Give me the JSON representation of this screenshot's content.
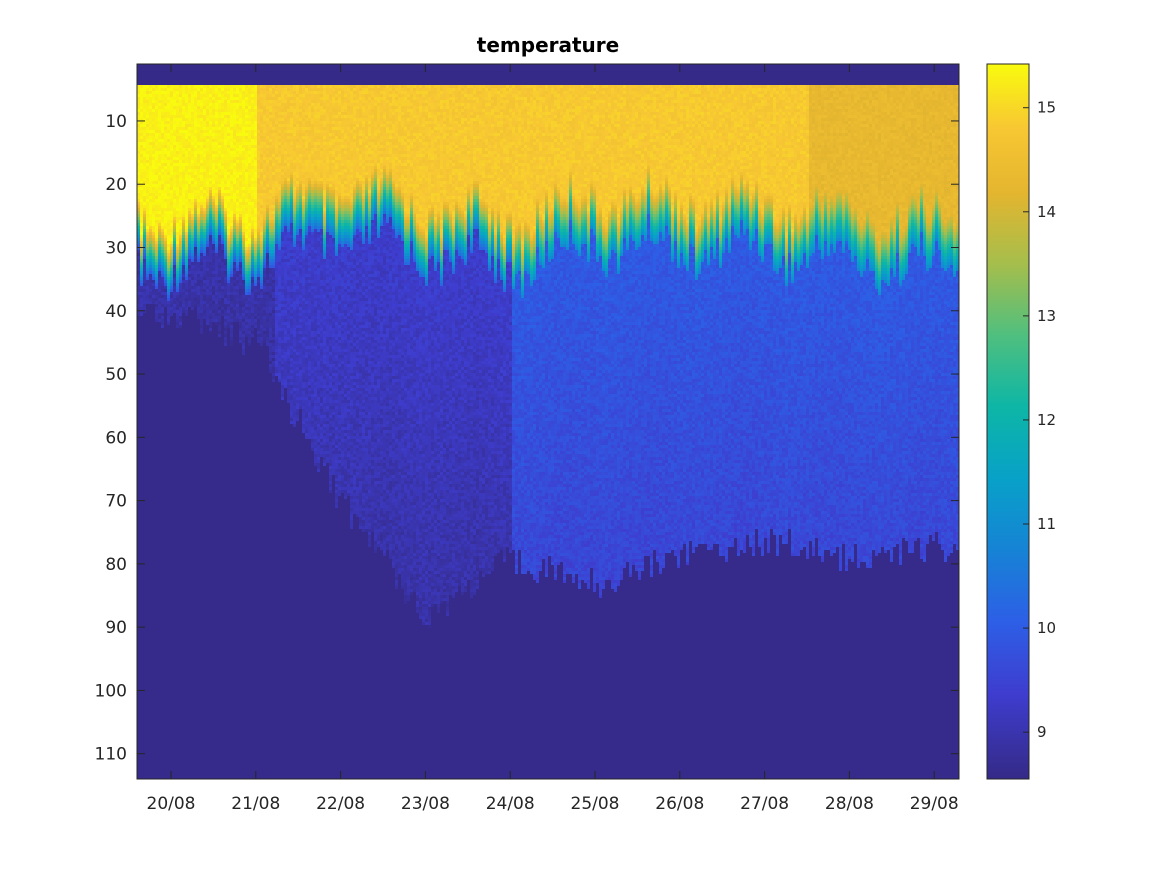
{
  "chart_data": {
    "type": "heatmap",
    "title": "temperature",
    "xlabel": "",
    "ylabel": "",
    "x_ticks": [
      "20/08",
      "21/08",
      "22/08",
      "23/08",
      "24/08",
      "25/08",
      "26/08",
      "27/08",
      "28/08",
      "29/08"
    ],
    "x_range_days": [
      "19/08 15:00",
      "29/08 07:00"
    ],
    "y_ticks": [
      10,
      20,
      30,
      40,
      50,
      60,
      70,
      80,
      90,
      100,
      110
    ],
    "y_range": [
      1,
      114
    ],
    "y_reversed": true,
    "colorbar": {
      "colormap": "parula",
      "ticks": [
        9,
        10,
        11,
        12,
        13,
        14,
        15
      ],
      "range": [
        8.55,
        15.42
      ]
    },
    "surface_layer": {
      "surface_depth": 4,
      "warm_temp": 14.8,
      "thermocline_depth_by_day": {
        "20/08": 28,
        "21/08": 27,
        "22/08": 23,
        "23/08": 26,
        "24/08": 28,
        "25/08": 24,
        "26/08": 25,
        "27/08": 25,
        "28/08": 27,
        "29/08": 28
      },
      "deep_mixed_boundary_depth_by_day": {
        "20/08": 40,
        "21/08": 45,
        "22/08": 70,
        "23/08": 88,
        "24/08": 79,
        "25/08": 83,
        "26/08": 78,
        "27/08": 76,
        "28/08": 79,
        "29/08": 77
      }
    }
  }
}
